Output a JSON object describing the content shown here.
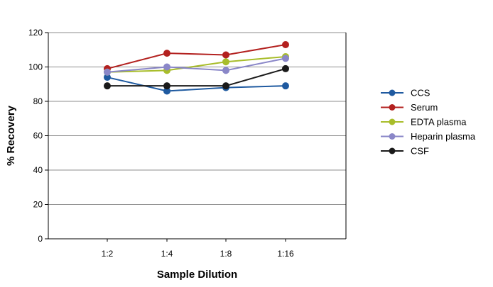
{
  "chart_data": {
    "type": "line",
    "title": "",
    "xlabel": "Sample Dilution",
    "ylabel": "% Recovery",
    "categories": [
      "1:2",
      "1:4",
      "1:8",
      "1:16"
    ],
    "ylim": [
      0,
      120
    ],
    "yticks": [
      0,
      20,
      40,
      60,
      80,
      100,
      120
    ],
    "grid": "horizontal",
    "legend_position": "right",
    "series": [
      {
        "name": "CCS",
        "color": "#1f5aa0",
        "values": [
          94,
          86,
          88,
          89
        ]
      },
      {
        "name": "Serum",
        "color": "#b3211f",
        "values": [
          99,
          108,
          107,
          113
        ]
      },
      {
        "name": "EDTA plasma",
        "color": "#a8bd2a",
        "values": [
          97,
          98,
          103,
          106
        ]
      },
      {
        "name": "Heparin plasma",
        "color": "#8a87c8",
        "values": [
          97,
          100,
          98,
          105
        ]
      },
      {
        "name": "CSF",
        "color": "#1a1a1a",
        "values": [
          89,
          89,
          89,
          99
        ]
      }
    ]
  }
}
